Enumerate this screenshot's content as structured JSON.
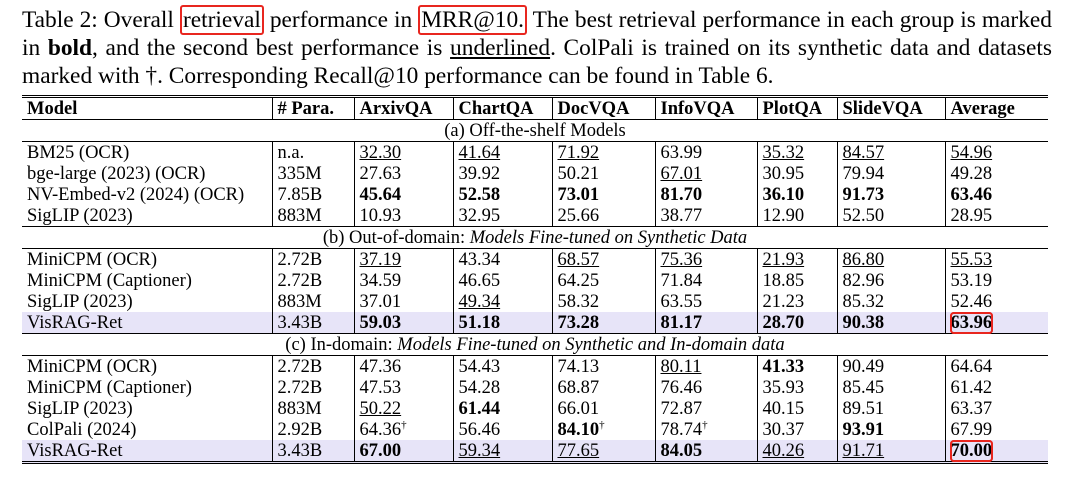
{
  "caption": {
    "segments": [
      {
        "text": "Table 2: Overall "
      },
      {
        "text": "retrieval",
        "boxed": true
      },
      {
        "text": " performance in "
      },
      {
        "text": "MRR@10.",
        "boxed": true
      },
      {
        "text": " The best retrieval performance in each group is marked in "
      },
      {
        "text": "bold",
        "bold": true
      },
      {
        "text": ", and the second best performance is "
      },
      {
        "text": "underlined",
        "underline": true
      },
      {
        "text": ". ColPali is trained on its synthetic data and datasets marked with †. Corresponding Recall@10 performance can be found in Table 6."
      }
    ]
  },
  "table": {
    "columns": [
      "Model",
      "# Para.",
      "ArxivQA",
      "ChartQA",
      "DocVQA",
      "InfoVQA",
      "PlotQA",
      "SlideVQA",
      "Average"
    ],
    "groups": [
      {
        "title": "(a) Off-the-shelf Models",
        "rows": [
          {
            "cells": [
              "BM25 (OCR)",
              "n.a.",
              "32.30",
              "41.64",
              "71.92",
              "63.99",
              "35.32",
              "84.57",
              "54.96"
            ],
            "underline": [
              2,
              3,
              4,
              6,
              7,
              8
            ]
          },
          {
            "cells": [
              "bge-large (2023) (OCR)",
              "335M",
              "27.63",
              "39.92",
              "50.21",
              "67.01",
              "30.95",
              "79.94",
              "49.28"
            ],
            "underline": [
              5
            ]
          },
          {
            "cells": [
              "NV-Embed-v2 (2024) (OCR)",
              "7.85B",
              "45.64",
              "52.58",
              "73.01",
              "81.70",
              "36.10",
              "91.73",
              "63.46"
            ],
            "bold": [
              2,
              3,
              4,
              5,
              6,
              7,
              8
            ]
          },
          {
            "cells": [
              "SigLIP (2023)",
              "883M",
              "10.93",
              "32.95",
              "25.66",
              "38.77",
              "12.90",
              "52.50",
              "28.95"
            ]
          }
        ]
      },
      {
        "title": "(b) Out-of-domain: ",
        "title_italic": "Models Fine-tuned on Synthetic Data",
        "rows": [
          {
            "cells": [
              "MiniCPM (OCR)",
              "2.72B",
              "37.19",
              "43.34",
              "68.57",
              "75.36",
              "21.93",
              "86.80",
              "55.53"
            ],
            "underline": [
              2,
              4,
              5,
              6,
              7,
              8
            ]
          },
          {
            "cells": [
              "MiniCPM (Captioner)",
              "2.72B",
              "34.59",
              "46.65",
              "64.25",
              "71.84",
              "18.85",
              "82.96",
              "53.19"
            ]
          },
          {
            "cells": [
              "SigLIP (2023)",
              "883M",
              "37.01",
              "49.34",
              "58.32",
              "63.55",
              "21.23",
              "85.32",
              "52.46"
            ],
            "underline": [
              3
            ]
          },
          {
            "cells": [
              "VisRAG-Ret",
              "3.43B",
              "59.03",
              "51.18",
              "73.28",
              "81.17",
              "28.70",
              "90.38",
              "63.96"
            ],
            "bold": [
              2,
              3,
              4,
              5,
              6,
              7,
              8
            ],
            "highlight": true,
            "boxed": [
              8
            ]
          }
        ]
      },
      {
        "title": "(c) In-domain: ",
        "title_italic": "Models Fine-tuned on Synthetic and In-domain data",
        "rows": [
          {
            "cells": [
              "MiniCPM (OCR)",
              "2.72B",
              "47.36",
              "54.43",
              "74.13",
              "80.11",
              "41.33",
              "90.49",
              "64.64"
            ],
            "underline": [
              5
            ],
            "bold": [
              6
            ]
          },
          {
            "cells": [
              "MiniCPM (Captioner)",
              "2.72B",
              "47.53",
              "54.28",
              "68.87",
              "76.46",
              "35.93",
              "85.45",
              "61.42"
            ]
          },
          {
            "cells": [
              "SigLIP (2023)",
              "883M",
              "50.22",
              "61.44",
              "66.01",
              "72.87",
              "40.15",
              "89.51",
              "63.37"
            ],
            "underline": [
              2
            ],
            "bold": [
              3
            ]
          },
          {
            "cells": [
              "ColPali (2024)",
              "2.92B",
              {
                "text": "64.36",
                "sup": "†"
              },
              "56.46",
              {
                "text": "84.10",
                "sup": "†"
              },
              {
                "text": "78.74",
                "sup": "†"
              },
              "30.37",
              "93.91",
              "67.99"
            ],
            "bold": [
              4,
              7
            ]
          },
          {
            "cells": [
              "VisRAG-Ret",
              "3.43B",
              "67.00",
              "59.34",
              "77.65",
              "84.05",
              "40.26",
              "91.71",
              "70.00"
            ],
            "bold": [
              2,
              5,
              8
            ],
            "underline": [
              3,
              4,
              6,
              7
            ],
            "highlight": true,
            "boxed": [
              8
            ]
          }
        ]
      }
    ]
  }
}
